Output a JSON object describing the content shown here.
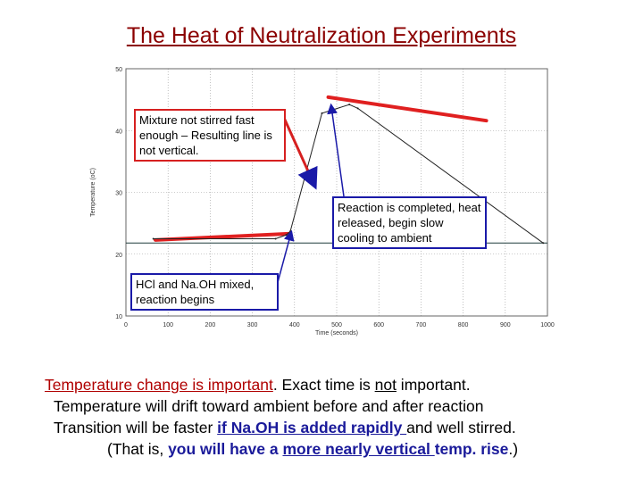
{
  "page_title": "The Heat of Neutralization Experiments",
  "chart_data": {
    "type": "line",
    "xlabel": "Time (seconds)",
    "ylabel": "Temperature (oC)",
    "xlim": [
      0,
      1000
    ],
    "ylim": [
      10,
      50
    ],
    "xticks": [
      "0",
      "100",
      "200",
      "300",
      "400",
      "500",
      "600",
      "700",
      "800",
      "900",
      "1000"
    ],
    "yticks": [
      "10",
      "20",
      "30",
      "40",
      "50"
    ],
    "grid": true,
    "series": [
      {
        "name": "temperature",
        "x": [
          65,
          355,
          380,
          390,
          465,
          530,
          550,
          990
        ],
        "y": [
          22.5,
          22.5,
          23.1,
          23.7,
          42.8,
          44.2,
          43.6,
          21.8
        ]
      }
    ],
    "annotation_series": [
      {
        "name": "extrapolated before",
        "x": [
          70,
          385
        ],
        "y": [
          22.3,
          23.3
        ]
      },
      {
        "name": "extrapolated after",
        "x": [
          480,
          855
        ],
        "y": [
          45.4,
          41.6
        ]
      }
    ],
    "annotations": [
      {
        "text": "Mixture not stirred fast enough – Resulting line is not vertical.",
        "style": "red",
        "arrow_to": [
          447,
          31.2
        ]
      },
      {
        "text": "Reaction is completed, heat released, begin slow cooling to ambient",
        "style": "blue",
        "arrow_to": [
          487,
          44
        ]
      },
      {
        "text": "HCl and Na.OH mixed, reaction begins",
        "style": "blue",
        "arrow_to": [
          392,
          23.5
        ]
      }
    ]
  },
  "caption": {
    "line1_red": "Temperature change is important",
    "line1_rest_a": ".  Exact time is ",
    "line1_not": "not",
    "line1_rest_b": " important.",
    "line2": "Temperature will drift toward ambient before and after reaction",
    "line3_a": "Transition will be faster ",
    "line3_blue": "if Na.OH is added rapidly ",
    "line3_b": "and well stirred.",
    "line4_a": "(That is, ",
    "line4_blue1": "you will have a ",
    "line4_blue2": "more nearly vertical ",
    "line4_blue3": "temp. rise",
    "line4_b": ".)"
  },
  "colors": {
    "title": "#8b0000",
    "line_red": "#e02020",
    "arrow_blue": "#1a1aa8",
    "ambient_line": "#1f3b3b"
  }
}
